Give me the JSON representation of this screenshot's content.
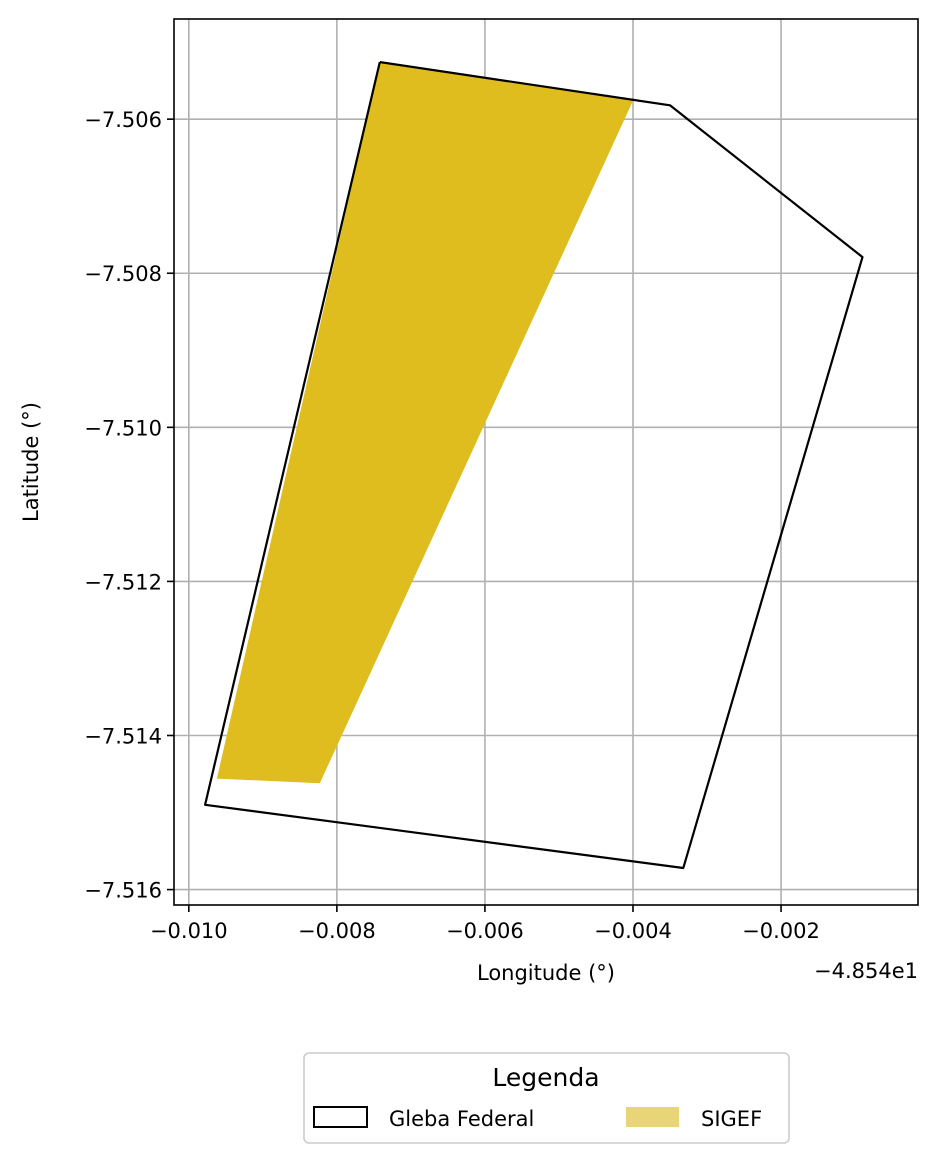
{
  "chart_data": {
    "type": "map",
    "xlabel": "Longitude (°)",
    "ylabel": "Latitude (°)",
    "x_offset_label": "−4.854e1",
    "xlim": [
      -0.0102,
      -0.00015
    ],
    "ylim": [
      -7.5162,
      -7.5047
    ],
    "xticks": [
      -0.01,
      -0.008,
      -0.006,
      -0.004,
      -0.002
    ],
    "xtick_labels": [
      "−0.010",
      "−0.008",
      "−0.006",
      "−0.004",
      "−0.002"
    ],
    "yticks": [
      -7.506,
      -7.508,
      -7.51,
      -7.512,
      -7.514,
      -7.516
    ],
    "ytick_labels": [
      "−7.506",
      "−7.508",
      "−7.510",
      "−7.512",
      "−7.514",
      "−7.516"
    ],
    "grid": true,
    "series": [
      {
        "name": "Gleba Federal",
        "kind": "outline",
        "color": "#000000",
        "points": [
          [
            -0.00742,
            -7.50526
          ],
          [
            -0.0035,
            -7.50582
          ],
          [
            -0.0009,
            -7.50779
          ],
          [
            -0.00332,
            -7.51572
          ],
          [
            -0.00978,
            -7.5149
          ],
          [
            -0.00742,
            -7.50526
          ]
        ]
      },
      {
        "name": "SIGEF",
        "kind": "filled",
        "color": "#dfbd1f",
        "legend_color": "#e8d578",
        "points": [
          [
            -0.00742,
            -7.50526
          ],
          [
            -0.004,
            -7.50576
          ],
          [
            -0.00823,
            -7.51462
          ],
          [
            -0.00962,
            -7.51456
          ]
        ]
      }
    ],
    "legend": {
      "title": "Legenda",
      "placement": "bottom-center",
      "entries": [
        "Gleba Federal",
        "SIGEF"
      ]
    }
  }
}
